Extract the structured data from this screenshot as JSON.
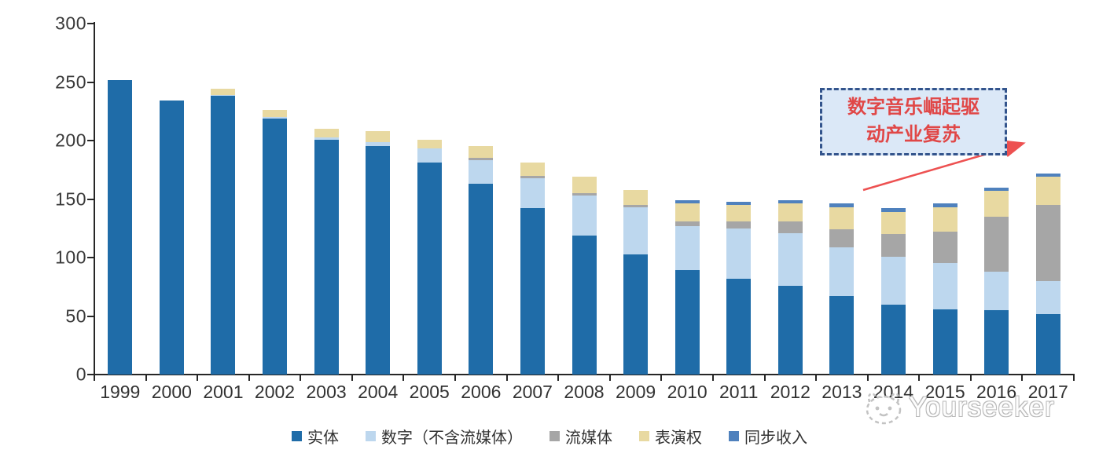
{
  "chart_data": {
    "type": "bar",
    "variant": "stacked-vertical",
    "title": "",
    "xlabel": "",
    "ylabel": "",
    "ylim": [
      0,
      300
    ],
    "yticks": [
      0,
      50,
      100,
      150,
      200,
      250,
      300
    ],
    "grid": false,
    "legend_position": "bottom",
    "categories": [
      "1999",
      "2000",
      "2001",
      "2002",
      "2003",
      "2004",
      "2005",
      "2006",
      "2007",
      "2008",
      "2009",
      "2010",
      "2011",
      "2012",
      "2013",
      "2014",
      "2015",
      "2016",
      "2017"
    ],
    "series": [
      {
        "key": "physical",
        "name": "实体",
        "color": "#1F6CA8",
        "values": [
          252,
          234,
          238,
          219,
          201,
          195,
          181,
          163,
          142,
          119,
          103,
          89,
          82,
          76,
          67,
          60,
          56,
          55,
          52
        ]
      },
      {
        "key": "digital-ex-streaming",
        "name": "数字（不含流媒体）",
        "color": "#BDD7EE",
        "values": [
          0,
          0,
          1,
          1,
          2,
          4,
          12,
          20,
          26,
          34,
          40,
          38,
          43,
          45,
          42,
          41,
          39,
          33,
          28
        ]
      },
      {
        "key": "streaming",
        "name": "流媒体",
        "color": "#A6A6A6",
        "values": [
          0,
          0,
          0,
          0,
          0,
          0,
          0,
          2,
          2,
          2,
          2,
          4,
          6,
          10,
          15,
          19,
          27,
          47,
          65
        ]
      },
      {
        "key": "performance-rights",
        "name": "表演权",
        "color": "#E8D9A1",
        "values": [
          0,
          0,
          5,
          6,
          7,
          9,
          8,
          10,
          11,
          14,
          13,
          15,
          14,
          15,
          19,
          19,
          21,
          22,
          24
        ]
      },
      {
        "key": "sync-revenue",
        "name": "同步收入",
        "color": "#4F81BD",
        "values": [
          0,
          0,
          0,
          0,
          0,
          0,
          0,
          0,
          0,
          0,
          0,
          3,
          3,
          3,
          3,
          3,
          3,
          3,
          3
        ]
      }
    ]
  },
  "annotation": {
    "line1": "数字音乐崛起驱",
    "line2": "动产业复苏",
    "text_color": "#E04747",
    "border_color": "#33548c",
    "fill_color": "#dbe8f7",
    "arrow_color": "#ED5151"
  },
  "watermark": {
    "text": "Yourseeker"
  }
}
